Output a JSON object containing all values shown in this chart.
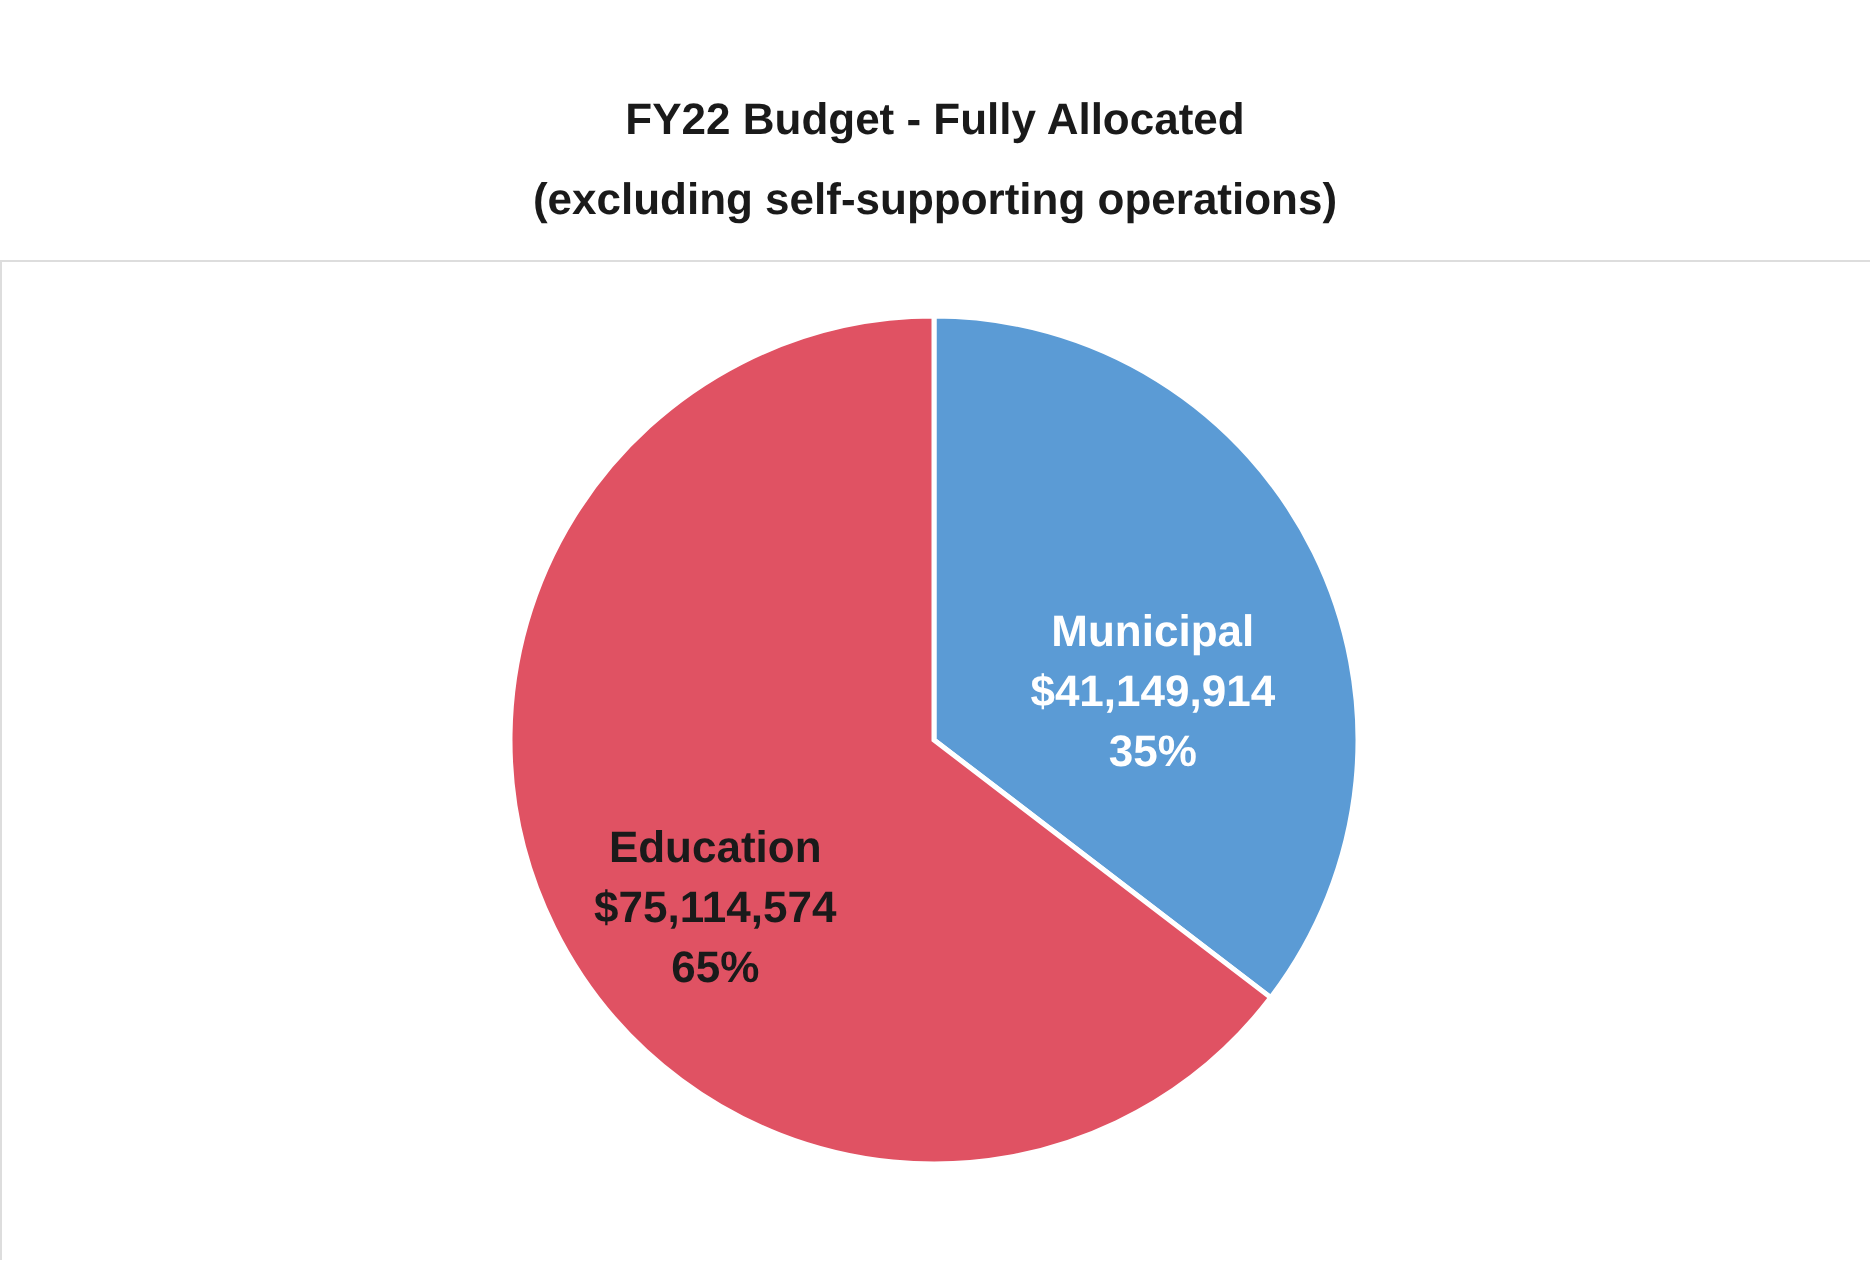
{
  "chart_data": {
    "type": "pie",
    "title": [
      "FY22 Budget - Fully Allocated",
      "(excluding self-supporting operations)"
    ],
    "categories": [
      "Municipal",
      "Education"
    ],
    "values": [
      41149914,
      75114574
    ],
    "colors": [
      "#5b9bd5",
      "#e05263"
    ],
    "value_labels": [
      "$41,149,914\n35%",
      "$75,114,574\n65%"
    ],
    "legend": false
  }
}
